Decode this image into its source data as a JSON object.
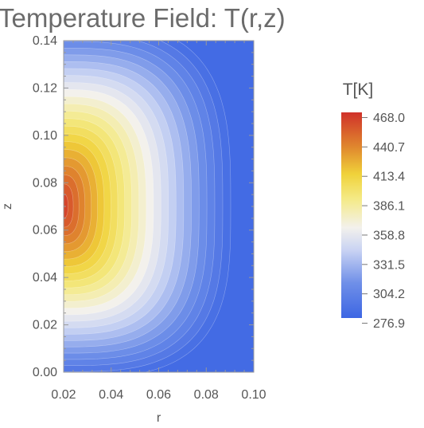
{
  "chart_data": {
    "type": "heatmap",
    "title": "Temperature Field: T(r,z)",
    "xlabel": "r",
    "ylabel": "z",
    "xlim": [
      0.02,
      0.1
    ],
    "ylim": [
      0.0,
      0.14
    ],
    "xticks": [
      "0.02",
      "0.04",
      "0.06",
      "0.08",
      "0.10"
    ],
    "yticks": [
      "0.00",
      "0.02",
      "0.04",
      "0.06",
      "0.08",
      "0.10",
      "0.12",
      "0.14"
    ],
    "colorbar": {
      "title": "T[K]",
      "min": 276.9,
      "max": 468.0,
      "ticks": [
        "468.0",
        "440.7",
        "413.4",
        "386.1",
        "358.8",
        "331.5",
        "304.2",
        "276.9"
      ]
    },
    "peak": {
      "r": 0.02,
      "z": 0.07,
      "T": 468.0
    },
    "contours": "filled",
    "legend_position": "right"
  }
}
